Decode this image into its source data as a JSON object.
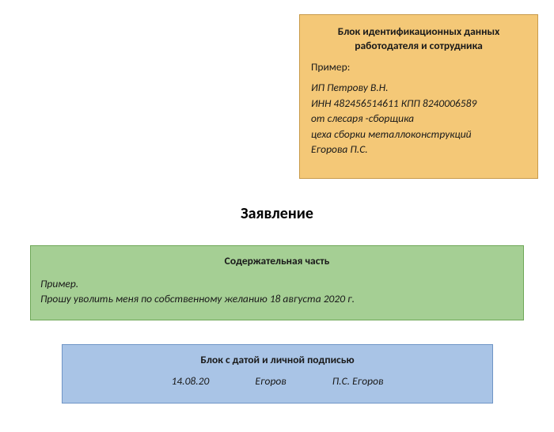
{
  "colors": {
    "id_block_bg": "#f4c877",
    "id_block_border": "#c89a4a",
    "content_block_bg": "#a5cf94",
    "content_block_border": "#6fa858",
    "sign_block_bg": "#a9c4e6",
    "sign_block_border": "#6f95c6",
    "text": "#1a1a1a"
  },
  "id_block": {
    "title_line1": "Блок идентификационных данных",
    "title_line2": "работодателя и сотрудника",
    "example_label": "Пример:",
    "line1": "ИП Петрову В.Н.",
    "line2": "ИНН 482456514611  КПП 8240006589",
    "line3": "от слесаря -сборщика",
    "line4": "цеха сборки металлоконструкций",
    "line5": "Егорова П.С."
  },
  "statement_title": "Заявление",
  "content_block": {
    "title": "Содержательная часть",
    "example_label": "Пример.",
    "body": "Прошу уволить меня по собственному желанию 18 августа 2020 г."
  },
  "sign_block": {
    "title": "Блок с датой и личной подписью",
    "date": "14.08.20",
    "signature": "Егоров",
    "name": "П.С. Егоров"
  }
}
